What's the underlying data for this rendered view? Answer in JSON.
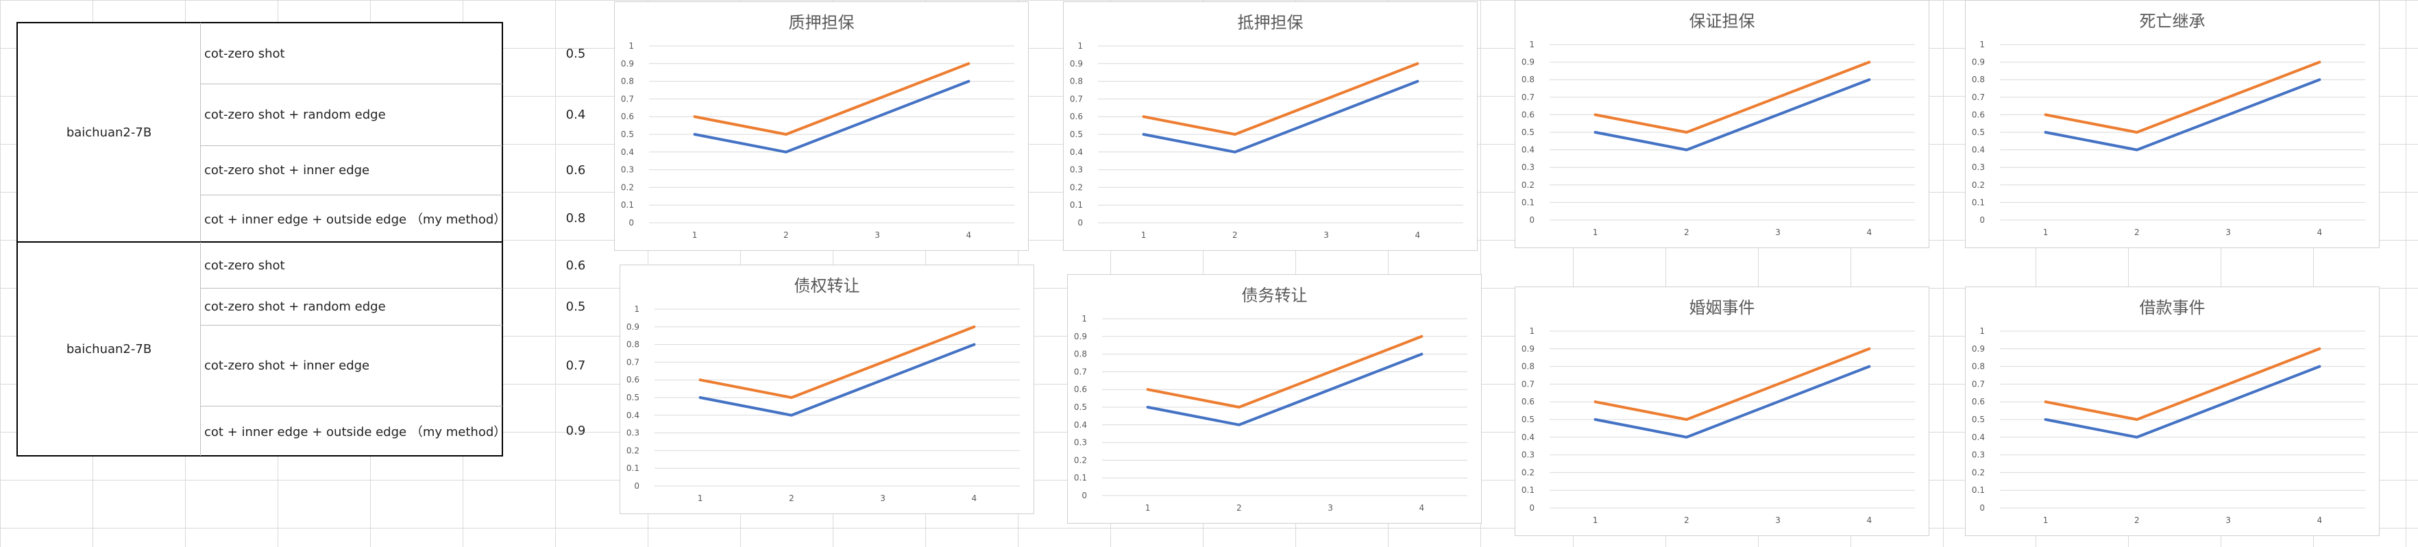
{
  "table": {
    "groups": [
      {
        "model": "baichuan2-7B",
        "rows": [
          {
            "method": "cot-zero shot",
            "score": "0.5"
          },
          {
            "method": "cot-zero shot + random edge",
            "score": "0.4"
          },
          {
            "method": "cot-zero shot + inner edge",
            "score": "0.6"
          },
          {
            "method": "cot + inner edge + outside edge （my method）",
            "score": "0.8"
          }
        ]
      },
      {
        "model": "baichuan2-7B",
        "rows": [
          {
            "method": "cot-zero shot",
            "score": "0.6"
          },
          {
            "method": "cot-zero shot + random edge",
            "score": "0.5"
          },
          {
            "method": "cot-zero shot + inner edge",
            "score": "0.7"
          },
          {
            "method": "cot + inner edge + outside edge （my method）",
            "score": "0.9"
          }
        ]
      }
    ]
  },
  "chart_data": [
    {
      "type": "line",
      "title": "质押担保",
      "x": [
        1,
        2,
        3,
        4
      ],
      "ylim": [
        0,
        1
      ],
      "y_ticks": [
        "0",
        "0.1",
        "0.2",
        "0.3",
        "0.4",
        "0.5",
        "0.6",
        "0.7",
        "0.8",
        "0.9",
        "1"
      ],
      "x_ticks": [
        "1",
        "2",
        "3",
        "4"
      ],
      "series": [
        {
          "values": [
            0.5,
            0.4,
            null,
            0.8
          ],
          "color": "#4472c4"
        },
        {
          "values": [
            0.6,
            0.5,
            null,
            0.9
          ],
          "color": "#ed7d31"
        }
      ],
      "grid": true
    },
    {
      "type": "line",
      "title": "抵押担保",
      "x": [
        1,
        2,
        3,
        4
      ],
      "ylim": [
        0,
        1
      ],
      "y_ticks": [
        "0",
        "0.1",
        "0.2",
        "0.3",
        "0.4",
        "0.5",
        "0.6",
        "0.7",
        "0.8",
        "0.9",
        "1"
      ],
      "x_ticks": [
        "1",
        "2",
        "3",
        "4"
      ],
      "series": [
        {
          "values": [
            0.5,
            0.4,
            null,
            0.8
          ],
          "color": "#4472c4"
        },
        {
          "values": [
            0.6,
            0.5,
            null,
            0.9
          ],
          "color": "#ed7d31"
        }
      ],
      "grid": true
    },
    {
      "type": "line",
      "title": "保证担保",
      "x": [
        1,
        2,
        3,
        4
      ],
      "ylim": [
        0,
        1
      ],
      "y_ticks": [
        "0",
        "0.1",
        "0.2",
        "0.3",
        "0.4",
        "0.5",
        "0.6",
        "0.7",
        "0.8",
        "0.9",
        "1"
      ],
      "x_ticks": [
        "1",
        "2",
        "3",
        "4"
      ],
      "series": [
        {
          "values": [
            0.5,
            0.4,
            null,
            0.8
          ],
          "color": "#4472c4"
        },
        {
          "values": [
            0.6,
            0.5,
            null,
            0.9
          ],
          "color": "#ed7d31"
        }
      ],
      "grid": true
    },
    {
      "type": "line",
      "title": "死亡继承",
      "x": [
        1,
        2,
        3,
        4
      ],
      "ylim": [
        0,
        1
      ],
      "y_ticks": [
        "0",
        "0.1",
        "0.2",
        "0.3",
        "0.4",
        "0.5",
        "0.6",
        "0.7",
        "0.8",
        "0.9",
        "1"
      ],
      "x_ticks": [
        "1",
        "2",
        "3",
        "4"
      ],
      "series": [
        {
          "values": [
            0.5,
            0.4,
            null,
            0.8
          ],
          "color": "#4472c4"
        },
        {
          "values": [
            0.6,
            0.5,
            null,
            0.9
          ],
          "color": "#ed7d31"
        }
      ],
      "grid": true
    },
    {
      "type": "line",
      "title": "债权转让",
      "x": [
        1,
        2,
        3,
        4
      ],
      "ylim": [
        0,
        1
      ],
      "y_ticks": [
        "0",
        "0.1",
        "0.2",
        "0.3",
        "0.4",
        "0.5",
        "0.6",
        "0.7",
        "0.8",
        "0.9",
        "1"
      ],
      "x_ticks": [
        "1",
        "2",
        "3",
        "4"
      ],
      "series": [
        {
          "values": [
            0.5,
            0.4,
            null,
            0.8
          ],
          "color": "#4472c4"
        },
        {
          "values": [
            0.6,
            0.5,
            null,
            0.9
          ],
          "color": "#ed7d31"
        }
      ],
      "grid": true
    },
    {
      "type": "line",
      "title": "债务转让",
      "x": [
        1,
        2,
        3,
        4
      ],
      "ylim": [
        0,
        1
      ],
      "y_ticks": [
        "0",
        "0.1",
        "0.2",
        "0.3",
        "0.4",
        "0.5",
        "0.6",
        "0.7",
        "0.8",
        "0.9",
        "1"
      ],
      "x_ticks": [
        "1",
        "2",
        "3",
        "4"
      ],
      "series": [
        {
          "values": [
            0.5,
            0.4,
            null,
            0.8
          ],
          "color": "#4472c4"
        },
        {
          "values": [
            0.6,
            0.5,
            null,
            0.9
          ],
          "color": "#ed7d31"
        }
      ],
      "grid": true
    },
    {
      "type": "line",
      "title": "婚姻事件",
      "x": [
        1,
        2,
        3,
        4
      ],
      "ylim": [
        0,
        1
      ],
      "y_ticks": [
        "0",
        "0.1",
        "0.2",
        "0.3",
        "0.4",
        "0.5",
        "0.6",
        "0.7",
        "0.8",
        "0.9",
        "1"
      ],
      "x_ticks": [
        "1",
        "2",
        "3",
        "4"
      ],
      "series": [
        {
          "values": [
            0.5,
            0.4,
            null,
            0.8
          ],
          "color": "#4472c4"
        },
        {
          "values": [
            0.6,
            0.5,
            null,
            0.9
          ],
          "color": "#ed7d31"
        }
      ],
      "grid": true
    },
    {
      "type": "line",
      "title": "借款事件",
      "x": [
        1,
        2,
        3,
        4
      ],
      "ylim": [
        0,
        1
      ],
      "y_ticks": [
        "0",
        "0.1",
        "0.2",
        "0.3",
        "0.4",
        "0.5",
        "0.6",
        "0.7",
        "0.8",
        "0.9",
        "1"
      ],
      "x_ticks": [
        "1",
        "2",
        "3",
        "4"
      ],
      "series": [
        {
          "values": [
            0.5,
            0.4,
            null,
            0.8
          ],
          "color": "#4472c4"
        },
        {
          "values": [
            0.6,
            0.5,
            null,
            0.9
          ],
          "color": "#ed7d31"
        }
      ],
      "grid": true
    }
  ]
}
